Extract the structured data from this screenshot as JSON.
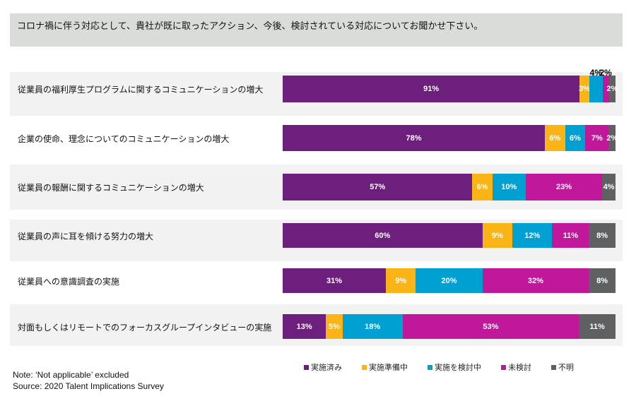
{
  "title": "コロナ禍に伴う対応として、貴社が既に取ったアクション、今後、検討されている対応についてお聞かせ下さい。",
  "chart_data": {
    "type": "bar",
    "orientation": "horizontal",
    "stacked": true,
    "categories": [
      "従業員の福利厚生プログラムに関するコミュニケーションの増大",
      "企業の使命、理念についてのコミュニケーションの増大",
      "従業員の報酬に関するコミュニケーションの増大",
      "従業員の声に耳を傾ける努力の増大",
      "従業員への意識調査の実施",
      "対面もしくはリモートでのフォーカスグループインタビューの実施"
    ],
    "series": [
      {
        "name": "実施済み",
        "color": "#6c1f7d",
        "values": [
          91,
          78,
          57,
          60,
          31,
          13
        ]
      },
      {
        "name": "実施準備中",
        "color": "#fbb415",
        "values": [
          3,
          6,
          6,
          9,
          9,
          5
        ]
      },
      {
        "name": "実施を検討中",
        "color": "#00a0d2",
        "values": [
          4,
          6,
          10,
          12,
          20,
          18
        ]
      },
      {
        "name": "未検討",
        "color": "#c0179b",
        "values": [
          2,
          7,
          23,
          11,
          32,
          53
        ]
      },
      {
        "name": "不明",
        "color": "#5f6062",
        "values": [
          2,
          2,
          4,
          8,
          8,
          11
        ]
      }
    ],
    "unit": "%",
    "legend": "bottom",
    "grid": false
  },
  "footer": {
    "note": "Note: ‘Not applicable’ excluded",
    "source": "Source: 2020 Talent Implications Survey"
  }
}
